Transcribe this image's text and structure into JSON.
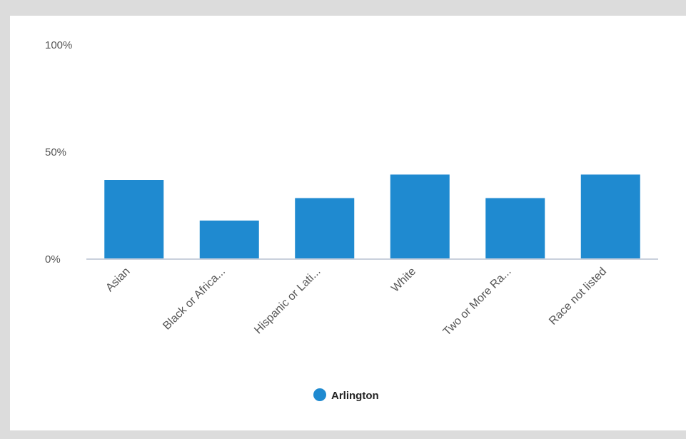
{
  "chart_data": {
    "type": "bar",
    "categories": [
      "Asian",
      "Black or Africa...",
      "Hispanic or Lati...",
      "White",
      "Two or More Ra...",
      "Race not listed"
    ],
    "series": [
      {
        "name": "Arlington",
        "values": [
          37,
          18,
          28.5,
          39.5,
          28.5,
          39.5
        ]
      }
    ],
    "y_ticks": [
      "0%",
      "50%",
      "100%"
    ],
    "ylim": [
      0,
      100
    ],
    "grid": false,
    "legend_position": "bottom-center",
    "colors": {
      "bar": "#1f8ad0",
      "axis": "#c9d0dc",
      "background": "#ffffff",
      "border": "#dcdcdc"
    }
  }
}
